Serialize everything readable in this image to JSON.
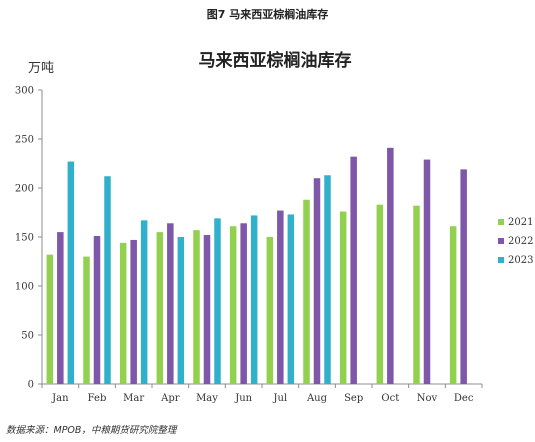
{
  "figure_caption": "图7 马来西亚棕榈油库存",
  "source_note": "数据来源：MPOB，中粮期货研究院整理",
  "chart_data": {
    "type": "bar",
    "title": "马来西亚棕榈油库存",
    "unit_label": "万吨",
    "xlabel": "",
    "ylabel": "",
    "ylim": [
      0,
      300
    ],
    "yticks": [
      0,
      50,
      100,
      150,
      200,
      250,
      300
    ],
    "grid": false,
    "legend_position": "right",
    "categories": [
      "Jan",
      "Feb",
      "Mar",
      "Apr",
      "May",
      "Jun",
      "Jul",
      "Aug",
      "Sep",
      "Oct",
      "Nov",
      "Dec"
    ],
    "series": [
      {
        "name": "2021",
        "color": "#92d050",
        "values": [
          132,
          130,
          144,
          155,
          157,
          161,
          150,
          188,
          176,
          183,
          182,
          161
        ]
      },
      {
        "name": "2022",
        "color": "#7e57a8",
        "values": [
          155,
          151,
          147,
          164,
          152,
          164,
          177,
          210,
          232,
          241,
          229,
          219
        ]
      },
      {
        "name": "2023",
        "color": "#31b0cb",
        "values": [
          227,
          212,
          167,
          150,
          169,
          172,
          173,
          213,
          null,
          null,
          null,
          null
        ]
      }
    ]
  }
}
